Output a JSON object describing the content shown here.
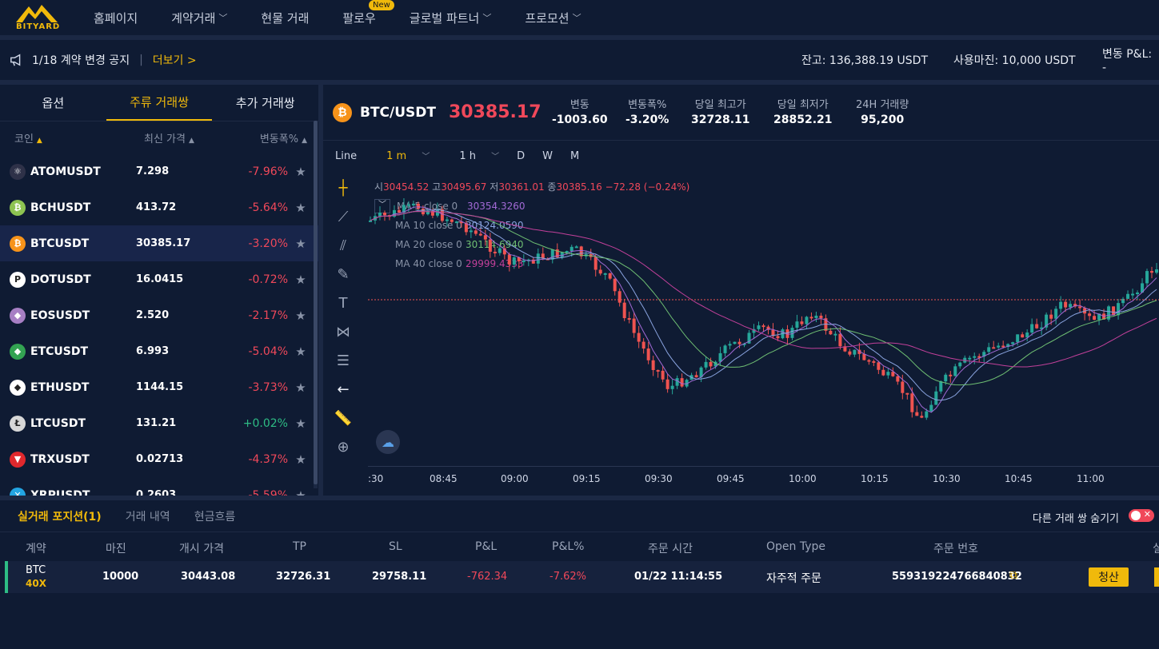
{
  "nav": {
    "logo_text": "BITYARD",
    "items": [
      {
        "label": "홈페이지",
        "dropdown": false
      },
      {
        "label": "계약거래",
        "dropdown": true
      },
      {
        "label": "현물 거래",
        "dropdown": false
      },
      {
        "label": "팔로우",
        "dropdown": false,
        "badge": "New"
      },
      {
        "label": "글로벌 파트너",
        "dropdown": true
      },
      {
        "label": "프로모션",
        "dropdown": true
      }
    ]
  },
  "notice": {
    "text": "1/18 계약 변경 공지",
    "more": "더보기 >",
    "balance": "잔고: 136,388.19 USDT",
    "margin": "사용마진: 10,000 USDT",
    "pnl": "변동 P&L: -"
  },
  "market": {
    "tabs": [
      "옵션",
      "주류 거래쌍",
      "추가 거래쌍"
    ],
    "active_tab": 1,
    "columns": [
      "코인",
      "최신 가격",
      "변동폭%"
    ],
    "rows": [
      {
        "symbol": "ATOMUSDT",
        "price": "7.298",
        "change": "-7.96%",
        "dir": "down",
        "icon_color": "#2e3148",
        "icon": "⚛"
      },
      {
        "symbol": "BCHUSDT",
        "price": "413.72",
        "change": "-5.64%",
        "dir": "down",
        "icon_color": "#8dc351",
        "icon": "₿"
      },
      {
        "symbol": "BTCUSDT",
        "price": "30385.17",
        "change": "-3.20%",
        "dir": "down",
        "icon_color": "#f7931a",
        "icon": "₿",
        "selected": true
      },
      {
        "symbol": "DOTUSDT",
        "price": "16.0415",
        "change": "-0.72%",
        "dir": "down",
        "icon_color": "#ffffff",
        "icon": "P"
      },
      {
        "symbol": "EOSUSDT",
        "price": "2.520",
        "change": "-2.17%",
        "dir": "down",
        "icon_color": "#a77fc4",
        "icon": "◆"
      },
      {
        "symbol": "ETCUSDT",
        "price": "6.993",
        "change": "-5.04%",
        "dir": "down",
        "icon_color": "#33a352",
        "icon": "◆"
      },
      {
        "symbol": "ETHUSDT",
        "price": "1144.15",
        "change": "-3.73%",
        "dir": "down",
        "icon_color": "#ffffff",
        "icon": "◆"
      },
      {
        "symbol": "LTCUSDT",
        "price": "131.21",
        "change": "+0.02%",
        "dir": "up",
        "icon_color": "#d7d7d7",
        "icon": "Ł"
      },
      {
        "symbol": "TRXUSDT",
        "price": "0.02713",
        "change": "-4.37%",
        "dir": "down",
        "icon_color": "#e0282d",
        "icon": "▼"
      },
      {
        "symbol": "XRPUSDT",
        "price": "0.2603",
        "change": "-5.59%",
        "dir": "down",
        "icon_color": "#23a5e3",
        "icon": "✕"
      }
    ]
  },
  "ticker": {
    "pair": "BTC/USDT",
    "price": "30385.17",
    "stats": [
      {
        "label": "변동",
        "value": "-1003.60",
        "color": "red"
      },
      {
        "label": "변동폭%",
        "value": "-3.20%",
        "color": "red"
      },
      {
        "label": "당일 최고가",
        "value": "32728.11",
        "color": "white"
      },
      {
        "label": "당일 최저가",
        "value": "28852.21",
        "color": "white"
      },
      {
        "label": "24H 거래량",
        "value": "95,200",
        "color": "white"
      }
    ]
  },
  "chart": {
    "intervals": [
      "Line",
      "1 m",
      "1 h",
      "D",
      "W",
      "M"
    ],
    "active_interval": "1 m",
    "ohlc": {
      "o_label": "시",
      "o": "30454.52",
      "h_label": "고",
      "h": "30495.67",
      "l_label": "저",
      "l": "30361.01",
      "c_label": "종",
      "c": "30385.16",
      "chg": "−72.28 (−0.24%)"
    },
    "ma": [
      {
        "name": "MA 5 close 0",
        "value": "30354.3260",
        "color": "#a26ad6"
      },
      {
        "name": "MA 10 close 0",
        "value": "30124.0590",
        "color": "#8aa4e0"
      },
      {
        "name": "MA 20 close 0",
        "value": "30114.6940",
        "color": "#6fbf73"
      },
      {
        "name": "MA 40 close 0",
        "value": "29999.4333",
        "color": "#c2409a"
      }
    ],
    "x_labels": [
      ":30",
      "08:45",
      "09:00",
      "09:15",
      "09:30",
      "09:45",
      "10:00",
      "10:15",
      "10:30",
      "10:45",
      "11:00"
    ]
  },
  "positions": {
    "tabs": [
      "실거래 포지션(1)",
      "거래 내역",
      "현금흐름"
    ],
    "hide_label": "다른 거래 쌍 숨기기",
    "columns": [
      "계약",
      "마진",
      "개시 가격",
      "TP",
      "SL",
      "P&L",
      "P&L%",
      "주문 시간",
      "Open Type",
      "주문 번호",
      "실"
    ],
    "row": {
      "contract": "BTC",
      "leverage": "40X",
      "margin": "10000",
      "open_price": "30443.08",
      "tp": "32726.31",
      "sl": "29758.11",
      "pnl": "-762.34",
      "pnl_pct": "-7.62%",
      "time": "01/22 11:14:55",
      "open_type": "자주적 주문",
      "order_no": "559319224766840832",
      "close_label": "청산"
    }
  }
}
